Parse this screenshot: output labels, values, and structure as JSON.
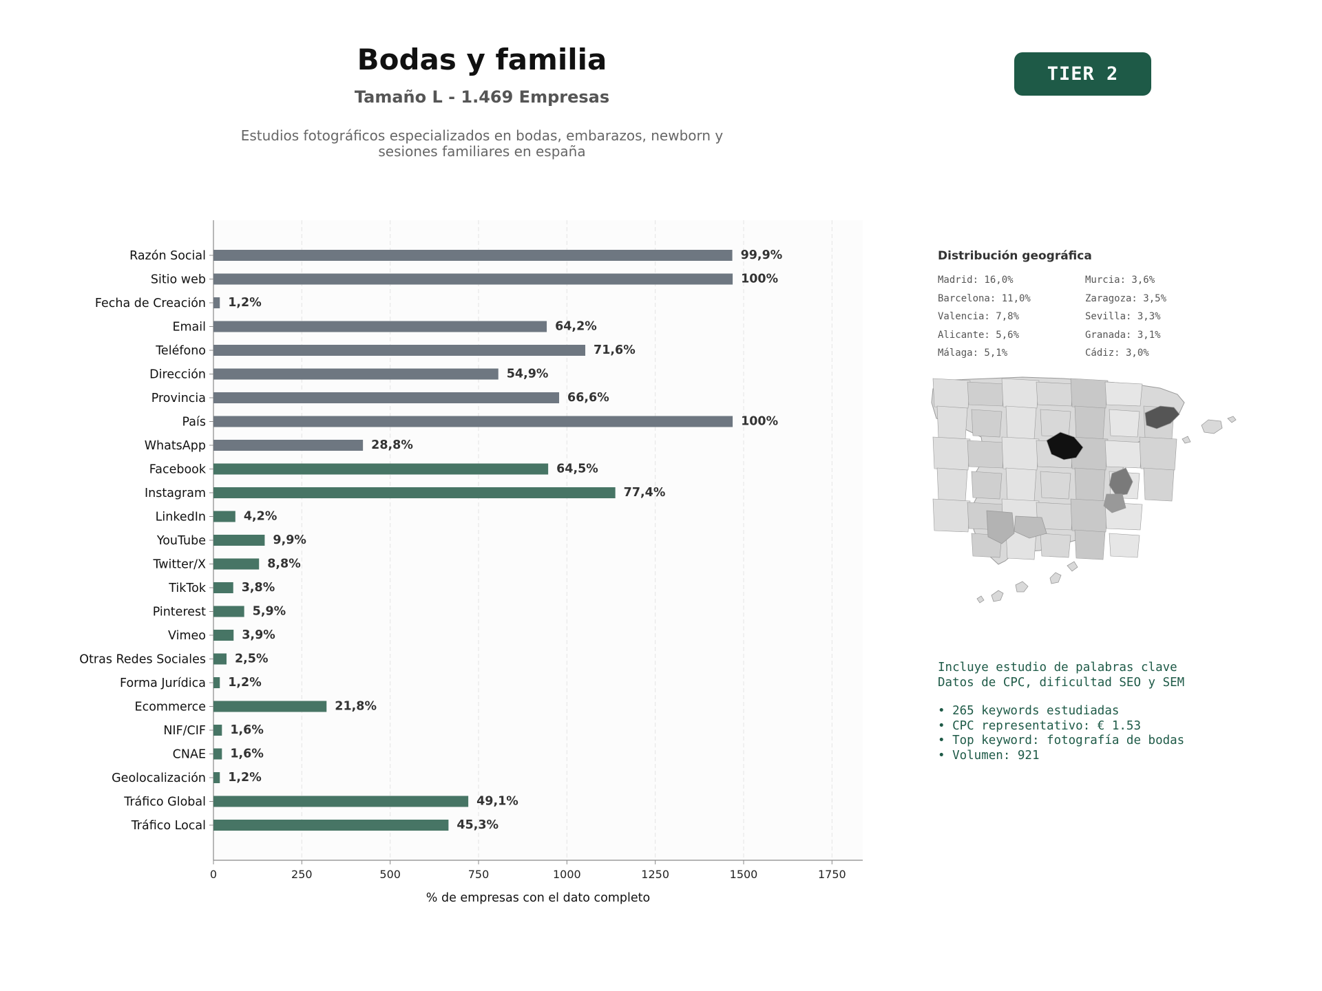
{
  "header": {
    "title": "Bodas y familia",
    "subtitle": "Tamaño L - 1.469 Empresas",
    "description": "Estudios fotográficos especializados en bodas, embarazos, newborn y sesiones familiares en españa"
  },
  "badge": {
    "label": "TIER 2"
  },
  "chart_data": {
    "type": "bar",
    "orientation": "horizontal",
    "xlabel": "% de empresas con el dato completo",
    "xlim": [
      0,
      1837
    ],
    "xticks": [
      0,
      250,
      500,
      750,
      1000,
      1250,
      1500,
      1750
    ],
    "grid": "vertical dashed",
    "categories": [
      "Razón Social",
      "Sitio web",
      "Fecha de Creación",
      "Email",
      "Teléfono",
      "Dirección",
      "Provincia",
      "País",
      "WhatsApp",
      "Facebook",
      "Instagram",
      "LinkedIn",
      "YouTube",
      "Twitter/X",
      "TikTok",
      "Pinterest",
      "Vimeo",
      "Otras Redes Sociales",
      "Forma Jurídica",
      "Ecommerce",
      "NIF/CIF",
      "CNAE",
      "Geolocalización",
      "Tráfico Global",
      "Tráfico Local"
    ],
    "values": [
      1468,
      1469,
      18,
      943,
      1052,
      806,
      978,
      1469,
      423,
      947,
      1137,
      62,
      145,
      129,
      56,
      87,
      57,
      37,
      18,
      320,
      24,
      24,
      18,
      721,
      665
    ],
    "labels": [
      "99,9%",
      "100%",
      "1,2%",
      "64,2%",
      "71,6%",
      "54,9%",
      "66,6%",
      "100%",
      "28,8%",
      "64,5%",
      "77,4%",
      "4,2%",
      "9,9%",
      "8,8%",
      "3,8%",
      "5,9%",
      "3,9%",
      "2,5%",
      "1,2%",
      "21,8%",
      "1,6%",
      "1,6%",
      "1,2%",
      "49,1%",
      "45,3%"
    ],
    "colors": [
      "#6e7781",
      "#6e7781",
      "#6e7781",
      "#6e7781",
      "#6e7781",
      "#6e7781",
      "#6e7781",
      "#6e7781",
      "#6e7781",
      "#477565",
      "#477565",
      "#477565",
      "#477565",
      "#477565",
      "#477565",
      "#477565",
      "#477565",
      "#477565",
      "#477565",
      "#477565",
      "#477565",
      "#477565",
      "#477565",
      "#477565",
      "#477565"
    ]
  },
  "geo": {
    "title": "Distribución geográfica",
    "items": [
      {
        "text": "Madrid: 16,0%"
      },
      {
        "text": "Murcia: 3,6%"
      },
      {
        "text": "Barcelona: 11,0%"
      },
      {
        "text": "Zaragoza: 3,5%"
      },
      {
        "text": "Valencia: 7,8%"
      },
      {
        "text": "Sevilla: 3,3%"
      },
      {
        "text": "Alicante: 5,6%"
      },
      {
        "text": "Granada: 3,1%"
      },
      {
        "text": "Málaga: 5,1%"
      },
      {
        "text": "Cádiz: 3,0%"
      }
    ],
    "map": {
      "madrid_color": "#111111",
      "barcelona_color": "#555555",
      "valencia_color": "#7a7a7a",
      "default_color": "#d9d9d9",
      "border_color": "#999999"
    }
  },
  "keywords": {
    "intro_1": "Incluye estudio de palabras clave",
    "intro_2": "Datos de CPC, dificultad SEO y SEM",
    "bullet_1": "• 265 keywords estudiadas",
    "bullet_2": "• CPC representativo: € 1.53",
    "bullet_3": "• Top keyword: fotografía de bodas",
    "bullet_4": "• Volumen: 921"
  }
}
